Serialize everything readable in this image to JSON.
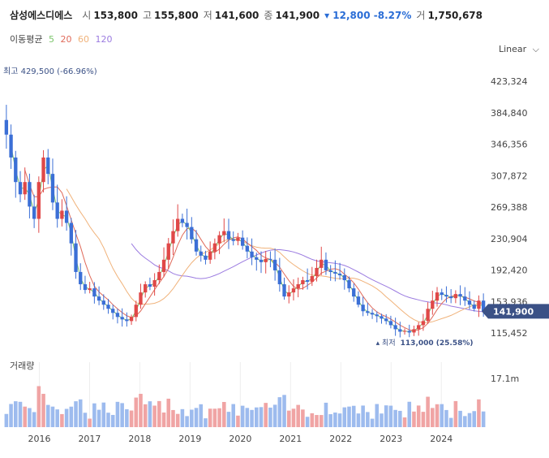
{
  "header": {
    "stock_name": "삼성에스디에스",
    "open_label": "시",
    "open": "153,800",
    "high_label": "고",
    "high": "155,800",
    "low_label": "저",
    "low": "141,600",
    "close_label": "종",
    "close": "141,900",
    "change": "▾ 12,800 -8.27%",
    "volume_label": "거",
    "volume": "1,750,678"
  },
  "ma_legend": {
    "label": "이동평균",
    "periods": [
      "5",
      "20",
      "60",
      "120"
    ]
  },
  "scale_selector": {
    "label": "Linear"
  },
  "volume_title": "거래량",
  "annotations": {
    "high": "최고 429,500 (-66.96%)",
    "low_prefix": "최저",
    "low": "113,000 (25.58%)",
    "current_price": "141,900"
  },
  "colors": {
    "up": "#e04848",
    "down": "#3b6fd6",
    "ma5": "#7bc56b",
    "ma20": "#e06a5a",
    "ma60": "#f0b27a",
    "ma120": "#9b7be0",
    "price_tag": "#3b5186",
    "vol_up": "#f0a4a4",
    "vol_down": "#9dbbee"
  },
  "chart_data": {
    "type": "candlestick",
    "y_ticks": [
      "423,324",
      "384,840",
      "346,356",
      "307,872",
      "269,388",
      "230,904",
      "192,420",
      "153,936",
      "115,452"
    ],
    "x_ticks": [
      "2016",
      "2017",
      "2018",
      "2019",
      "2020",
      "2021",
      "2022",
      "2023",
      "2024"
    ],
    "volume_tick": "17.1m",
    "ylim": [
      100000,
      450000
    ],
    "year_range": [
      2015.25,
      2024.9
    ],
    "monthly_closes": [
      358000,
      330000,
      300000,
      285000,
      300000,
      270000,
      255000,
      300000,
      330000,
      310000,
      275000,
      255000,
      265000,
      250000,
      225000,
      190000,
      175000,
      168000,
      170000,
      160000,
      155000,
      150000,
      145000,
      140000,
      135000,
      132000,
      130000,
      135000,
      150000,
      165000,
      175000,
      172000,
      180000,
      190000,
      205000,
      225000,
      240000,
      255000,
      250000,
      245000,
      230000,
      215000,
      210000,
      205000,
      215000,
      225000,
      235000,
      240000,
      230000,
      228000,
      232000,
      222000,
      215000,
      208000,
      205000,
      202000,
      206000,
      205000,
      192000,
      175000,
      160000,
      165000,
      170000,
      175000,
      180000,
      178000,
      185000,
      195000,
      205000,
      192000,
      190000,
      188000,
      186000,
      180000,
      170000,
      160000,
      150000,
      142000,
      140000,
      138000,
      136000,
      133000,
      130000,
      125000,
      120000,
      117000,
      118000,
      116000,
      120000,
      125000,
      130000,
      145000,
      155000,
      165000,
      162000,
      160000,
      158000,
      163000,
      160000,
      155000,
      150000,
      145000,
      155000,
      141900
    ],
    "high_annotation": 429500,
    "low_annotation": 113000,
    "current_price": 141900
  }
}
